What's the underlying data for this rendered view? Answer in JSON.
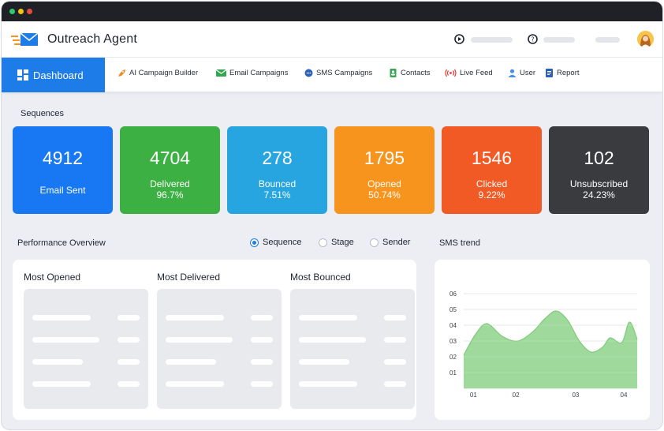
{
  "app": {
    "title": "Outreach Agent"
  },
  "nav": {
    "active": "Dashboard",
    "items": [
      {
        "label": "AI Campaign Builder",
        "icon": "rocket-icon",
        "color": "#f08a24"
      },
      {
        "label": "Email Campaigns",
        "icon": "envelope-icon",
        "color": "#2fa84f"
      },
      {
        "label": "SMS Campaigns",
        "icon": "chat-icon",
        "color": "#2c5fb8"
      },
      {
        "label": "Contacts",
        "icon": "contact-book-icon",
        "color": "#3aa655"
      },
      {
        "label": "Live Feed",
        "icon": "broadcast-icon",
        "color": "#e53935"
      },
      {
        "label": "User",
        "icon": "user-icon",
        "color": "#4b8fe0"
      },
      {
        "label": "Report",
        "icon": "report-icon",
        "color": "#2c5fb8"
      }
    ]
  },
  "sequences": {
    "title": "Sequences",
    "cards": [
      {
        "value": "4912",
        "label": "Email Sent",
        "pct": "",
        "color": "#1877f2"
      },
      {
        "value": "4704",
        "label": "Delivered",
        "pct": "96.7%",
        "color": "#3cb043"
      },
      {
        "value": "278",
        "label": "Bounced",
        "pct": "7.51%",
        "color": "#27a5e0"
      },
      {
        "value": "1795",
        "label": "Opened",
        "pct": "50.74%",
        "color": "#f7941d"
      },
      {
        "value": "1546",
        "label": "Clicked",
        "pct": "9.22%",
        "color": "#f15a24"
      },
      {
        "value": "102",
        "label": "Unsubscribed",
        "pct": "24.23%",
        "color": "#3a3b3f"
      }
    ]
  },
  "performance": {
    "title": "Performance Overview",
    "filters": [
      {
        "label": "Sequence",
        "selected": true
      },
      {
        "label": "Stage",
        "selected": false
      },
      {
        "label": "Sender",
        "selected": false
      }
    ],
    "columns": [
      "Most Opened",
      "Most Delivered",
      "Most Bounced"
    ]
  },
  "sms_trend": {
    "title": "SMS trend"
  },
  "chart_data": {
    "type": "area",
    "title": "SMS trend",
    "y_ticks": [
      "06",
      "05",
      "04",
      "03",
      "02",
      "01"
    ],
    "x_ticks": [
      "01",
      "02",
      "03",
      "04"
    ],
    "ylim": [
      0,
      6
    ],
    "x": [
      0,
      0.3,
      0.6,
      1,
      1.4,
      1.8,
      2.1,
      2.4,
      2.7,
      3,
      3.3,
      3.6,
      3.8,
      4.1,
      4.3,
      4.5
    ],
    "values": [
      2.1,
      3.4,
      4.1,
      3.3,
      3.0,
      3.6,
      4.4,
      4.9,
      4.3,
      3.0,
      2.3,
      2.6,
      3.2,
      2.9,
      4.2,
      3.1
    ],
    "color": "#9fd99b",
    "line_color": "#7fcb7a",
    "grid": true
  }
}
